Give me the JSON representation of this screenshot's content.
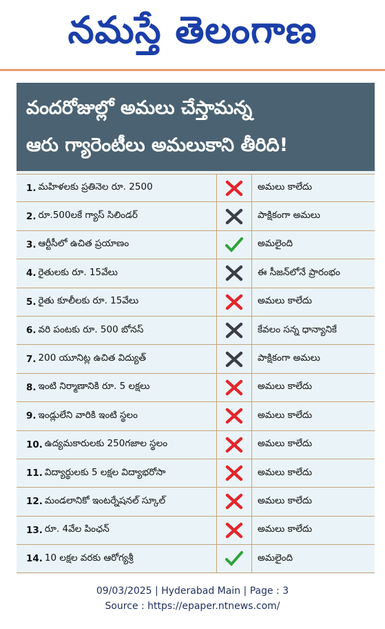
{
  "masthead": {
    "title": "నమస్తే తెలంగాణ"
  },
  "headline": {
    "line1": "వందరోజుల్లో అమలు చేస్తామన్న",
    "line2": "ఆరు గ్యారెంటీలు అమలుకాని తీరిది!"
  },
  "rows": [
    {
      "num": "1.",
      "text": "మహిళలకు ప్రతినెల రూ. 2500",
      "mark": "cross-red",
      "status": "అమలు కాలేదు"
    },
    {
      "num": "2.",
      "text": "రూ.500లకే గ్యాస్ సిలిండర్",
      "mark": "cross-dark",
      "status": "పాక్షికంగా అమలు"
    },
    {
      "num": "3.",
      "text": "ఆర్టీసీలో ఉచిత ప్రయాణం",
      "mark": "check-green",
      "status": "అమలైంది"
    },
    {
      "num": "4.",
      "text": "రైతులకు రూ. 15వేలు",
      "mark": "cross-dark",
      "status": "ఈ సీజన్‌లోనే ప్రారంభం"
    },
    {
      "num": "5.",
      "text": "రైతు కూలీలకు రూ. 15వేలు",
      "mark": "cross-red",
      "status": "అమలు కాలేదు"
    },
    {
      "num": "6.",
      "text": "వరి పంటకు రూ. 500 బోనస్",
      "mark": "cross-dark",
      "status": "కేవలం సన్న ధాన్యానికే"
    },
    {
      "num": "7.",
      "text": "200 యూనిట్ల ఉచిత విద్యుత్",
      "mark": "cross-dark",
      "status": "పాక్షికంగా అమలు"
    },
    {
      "num": "8.",
      "text": "ఇంటి నిర్మాణానికి రూ. 5 లక్షలు",
      "mark": "cross-red",
      "status": "అమలు కాలేదు"
    },
    {
      "num": "9.",
      "text": "ఇండ్లులేని వారికి ఇంటి స్థలం",
      "mark": "cross-red",
      "status": "అమలు కాలేదు"
    },
    {
      "num": "10.",
      "text": "ఉద్యమకారులకు 250గజాల స్థలం",
      "mark": "cross-red",
      "status": "అమలు కాలేదు"
    },
    {
      "num": "11.",
      "text": "విద్యార్థులకు 5 లక్షల విద్యాభరోసా",
      "mark": "cross-red",
      "status": "అమలు కాలేదు"
    },
    {
      "num": "12.",
      "text": "మండలానికో ఇంటర్నేషనల్ స్కూల్",
      "mark": "cross-red",
      "status": "అమలు కాలేదు"
    },
    {
      "num": "13.",
      "text": "రూ. 4వేల పింఛన్",
      "mark": "cross-red",
      "status": "అమలు కాలేదు"
    },
    {
      "num": "14.",
      "text": "10 లక్షల వరకు ఆరోగ్యశ్రీ",
      "mark": "check-green",
      "status": "అమలైంది"
    }
  ],
  "colors": {
    "masthead": "#1b3fa8",
    "headline_bg": "#4b6272",
    "card_bg": "#eaf4f8",
    "cross_red": "#e3262b",
    "cross_dark": "#3b3f45",
    "check_green": "#2fa33a"
  },
  "footer": {
    "line1": "09/03/2025 | Hyderabad Main | Page : 3",
    "line2": "Source : https://epaper.ntnews.com/"
  }
}
